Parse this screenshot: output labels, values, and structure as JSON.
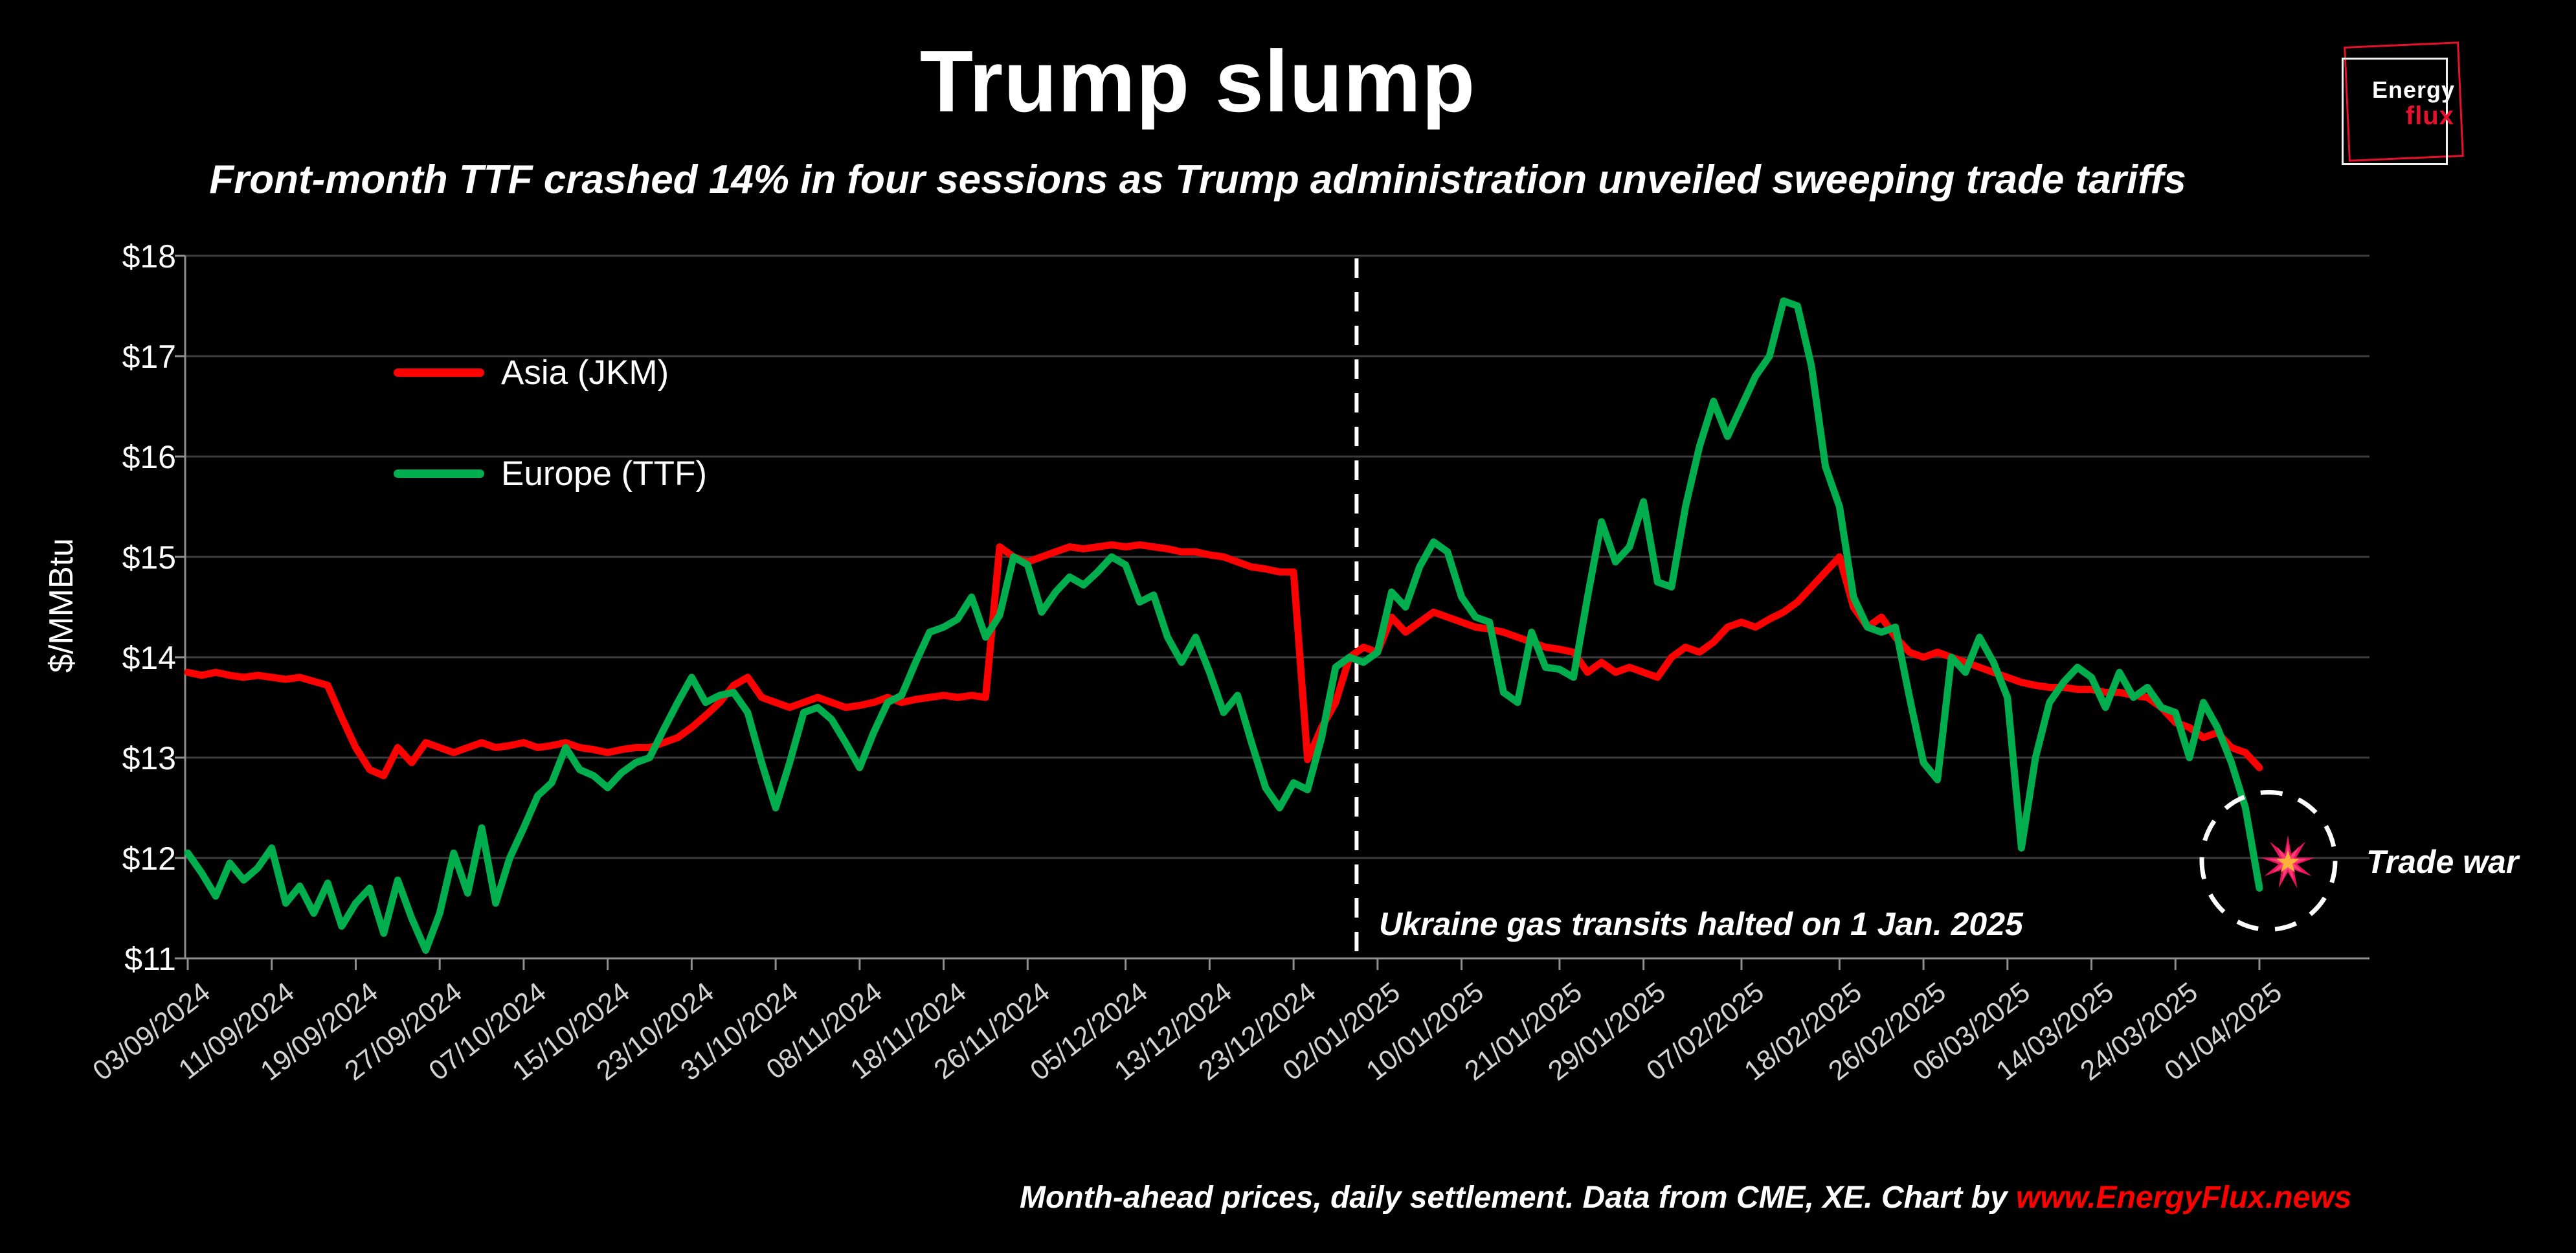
{
  "header": {
    "title": "Trump slump",
    "subtitle": "Front-month TTF crashed 14% in four sessions as Trump administration unveiled sweeping trade tariffs"
  },
  "logo": {
    "line1": "Energy",
    "line2": "flux"
  },
  "footer": {
    "text": "Month-ahead prices, daily settlement. Data from CME, XE. Chart by ",
    "link": "www.EnergyFlux.news"
  },
  "annotations": {
    "vline_label": "Ukraine gas transits halted on 1 Jan. 2025",
    "trade_war_label": "Trade war"
  },
  "colors": {
    "asia": "#ff0000",
    "europe": "#00ae4d",
    "grid": "#3c3c3c",
    "axis": "#8f8f8f",
    "xlabel": "#d4d4d4",
    "accent_red": "#ff0000"
  },
  "chart_data": {
    "type": "line",
    "title": "Trump slump",
    "xlabel": "",
    "ylabel": "$/MMBtu",
    "ylim": [
      11,
      18
    ],
    "grid": "horizontal",
    "legend_position": "top-left-inside",
    "y_ticks": [
      {
        "value": 18,
        "label": "$18"
      },
      {
        "value": 17,
        "label": "$17"
      },
      {
        "value": 16,
        "label": "$16"
      },
      {
        "value": 15,
        "label": "$15"
      },
      {
        "value": 14,
        "label": "$14"
      },
      {
        "value": 13,
        "label": "$13"
      },
      {
        "value": 12,
        "label": "$12"
      },
      {
        "value": 11,
        "label": "$11"
      }
    ],
    "x_ticks": [
      {
        "index": 0,
        "label": "03/09/2024"
      },
      {
        "index": 6,
        "label": "11/09/2024"
      },
      {
        "index": 12,
        "label": "19/09/2024"
      },
      {
        "index": 18,
        "label": "27/09/2024"
      },
      {
        "index": 24,
        "label": "07/10/2024"
      },
      {
        "index": 30,
        "label": "15/10/2024"
      },
      {
        "index": 36,
        "label": "23/10/2024"
      },
      {
        "index": 42,
        "label": "31/10/2024"
      },
      {
        "index": 48,
        "label": "08/11/2024"
      },
      {
        "index": 54,
        "label": "18/11/2024"
      },
      {
        "index": 60,
        "label": "26/11/2024"
      },
      {
        "index": 67,
        "label": "05/12/2024"
      },
      {
        "index": 73,
        "label": "13/12/2024"
      },
      {
        "index": 79,
        "label": "23/12/2024"
      },
      {
        "index": 85,
        "label": "02/01/2025"
      },
      {
        "index": 91,
        "label": "10/01/2025"
      },
      {
        "index": 98,
        "label": "21/01/2025"
      },
      {
        "index": 104,
        "label": "29/01/2025"
      },
      {
        "index": 111,
        "label": "07/02/2025"
      },
      {
        "index": 118,
        "label": "18/02/2025"
      },
      {
        "index": 124,
        "label": "26/02/2025"
      },
      {
        "index": 130,
        "label": "06/03/2025"
      },
      {
        "index": 136,
        "label": "14/03/2025"
      },
      {
        "index": 142,
        "label": "24/03/2025"
      },
      {
        "index": 148,
        "label": "01/04/2025"
      }
    ],
    "vline": {
      "x_index": 83.5,
      "label": "Ukraine gas transits halted on 1 Jan. 2025"
    },
    "series": [
      {
        "name": "Asia (JKM)",
        "color": "#ff0000",
        "values": [
          13.85,
          13.82,
          13.85,
          13.82,
          13.8,
          13.82,
          13.8,
          13.78,
          13.8,
          13.76,
          13.72,
          13.4,
          13.1,
          12.88,
          12.82,
          13.1,
          12.95,
          13.15,
          13.1,
          13.05,
          13.1,
          13.15,
          13.1,
          13.12,
          13.15,
          13.1,
          13.12,
          13.15,
          13.1,
          13.08,
          13.05,
          13.08,
          13.1,
          13.1,
          13.15,
          13.2,
          13.3,
          13.42,
          13.55,
          13.72,
          13.8,
          13.6,
          13.55,
          13.5,
          13.55,
          13.6,
          13.55,
          13.5,
          13.52,
          13.55,
          13.6,
          13.55,
          13.58,
          13.6,
          13.62,
          13.6,
          13.62,
          13.6,
          15.1,
          15.0,
          14.95,
          15.0,
          15.05,
          15.1,
          15.08,
          15.1,
          15.12,
          15.1,
          15.12,
          15.1,
          15.08,
          15.05,
          15.05,
          15.02,
          15.0,
          14.95,
          14.9,
          14.88,
          14.85,
          14.85,
          12.98,
          13.3,
          13.55,
          14.0,
          14.1,
          14.05,
          14.4,
          14.25,
          14.35,
          14.45,
          14.4,
          14.35,
          14.3,
          14.28,
          14.25,
          14.2,
          14.15,
          14.1,
          14.08,
          14.05,
          13.85,
          13.95,
          13.85,
          13.9,
          13.85,
          13.8,
          14.0,
          14.1,
          14.05,
          14.15,
          14.3,
          14.35,
          14.3,
          14.38,
          14.45,
          14.55,
          14.7,
          14.85,
          15.0,
          14.5,
          14.3,
          14.4,
          14.2,
          14.05,
          14.0,
          14.05,
          14.0,
          13.95,
          13.9,
          13.85,
          13.8,
          13.75,
          13.72,
          13.7,
          13.7,
          13.68,
          13.68,
          13.65,
          13.65,
          13.62,
          13.6,
          13.5,
          13.35,
          13.3,
          13.2,
          13.25,
          13.1,
          13.05,
          12.9
        ]
      },
      {
        "name": "Europe (TTF)",
        "color": "#00ae4d",
        "values": [
          12.05,
          11.85,
          11.62,
          11.95,
          11.78,
          11.9,
          12.1,
          11.55,
          11.72,
          11.45,
          11.75,
          11.32,
          11.55,
          11.7,
          11.25,
          11.78,
          11.4,
          11.08,
          11.45,
          12.05,
          11.65,
          12.3,
          11.55,
          12.0,
          12.3,
          12.62,
          12.75,
          13.1,
          12.88,
          12.82,
          12.7,
          12.85,
          12.95,
          13.0,
          13.28,
          13.55,
          13.8,
          13.55,
          13.62,
          13.65,
          13.45,
          12.95,
          12.5,
          12.95,
          13.45,
          13.5,
          13.38,
          13.15,
          12.9,
          13.25,
          13.55,
          13.62,
          13.95,
          14.25,
          14.3,
          14.38,
          14.6,
          14.2,
          14.42,
          15.0,
          14.92,
          14.45,
          14.65,
          14.8,
          14.72,
          14.85,
          15.0,
          14.92,
          14.55,
          14.62,
          14.2,
          13.95,
          14.2,
          13.85,
          13.45,
          13.62,
          13.15,
          12.7,
          12.5,
          12.75,
          12.68,
          13.2,
          13.9,
          14.0,
          13.95,
          14.05,
          14.65,
          14.5,
          14.9,
          15.15,
          15.05,
          14.6,
          14.4,
          14.35,
          13.65,
          13.55,
          14.25,
          13.9,
          13.88,
          13.8,
          14.6,
          15.35,
          14.95,
          15.1,
          15.55,
          14.75,
          14.7,
          15.5,
          16.1,
          16.55,
          16.2,
          16.5,
          16.8,
          17.0,
          17.55,
          17.5,
          16.9,
          15.9,
          15.5,
          14.6,
          14.3,
          14.25,
          14.3,
          13.6,
          12.95,
          12.78,
          14.0,
          13.85,
          14.2,
          13.95,
          13.6,
          12.1,
          13.0,
          13.55,
          13.75,
          13.9,
          13.8,
          13.5,
          13.85,
          13.6,
          13.7,
          13.5,
          13.45,
          13.0,
          13.55,
          13.3,
          12.95,
          12.5,
          11.7
        ]
      }
    ],
    "trade_war_marker": {
      "x_index": 148,
      "value": 11.7
    }
  }
}
